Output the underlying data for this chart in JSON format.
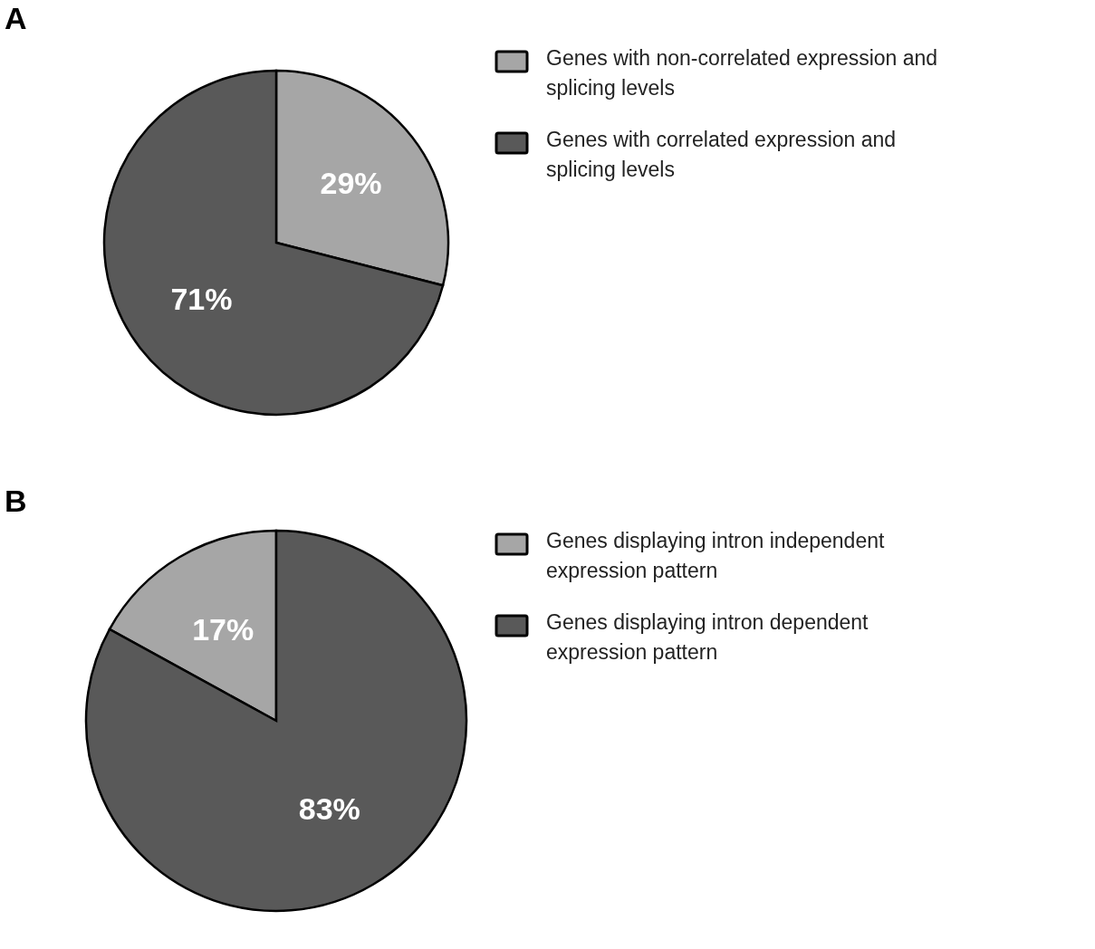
{
  "chart_data": [
    {
      "type": "pie",
      "title": "A",
      "categories": [
        "Genes with non-correlated expression and splicing levels",
        "Genes with correlated expression and splicing levels"
      ],
      "values": [
        29,
        71
      ],
      "value_labels": [
        "29%",
        "71%"
      ],
      "colors": [
        "#a6a6a6",
        "#595959"
      ],
      "legend": "right"
    },
    {
      "type": "pie",
      "title": "B",
      "categories": [
        "Genes displaying intron independent expression pattern",
        "Genes displaying intron dependent expression pattern"
      ],
      "values": [
        17,
        83
      ],
      "value_labels": [
        "17%",
        "83%"
      ],
      "colors": [
        "#a6a6a6",
        "#595959"
      ],
      "legend": "right"
    }
  ]
}
